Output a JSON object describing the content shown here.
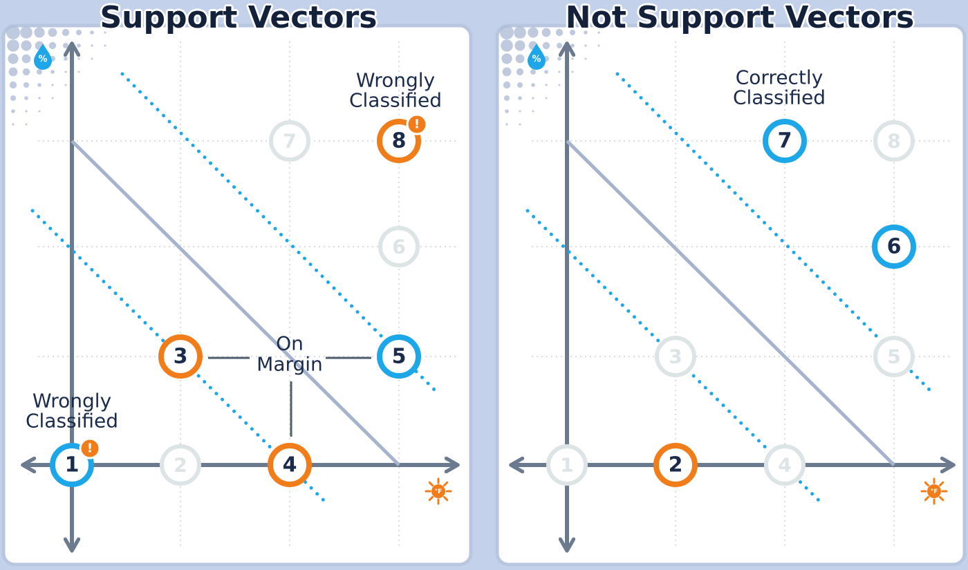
{
  "panels": [
    {
      "title": "Support Vectors",
      "labels": {
        "wrong_top": [
          "Wrongly",
          "Classified"
        ],
        "wrong_bottom": [
          "Wrongly",
          "Classified"
        ],
        "on_margin": [
          "On",
          "Margin"
        ]
      },
      "points": [
        {
          "id": "1",
          "state": "blue",
          "alert": true
        },
        {
          "id": "2",
          "state": "faded"
        },
        {
          "id": "3",
          "state": "orange"
        },
        {
          "id": "4",
          "state": "orange"
        },
        {
          "id": "5",
          "state": "blue"
        },
        {
          "id": "6",
          "state": "faded"
        },
        {
          "id": "7",
          "state": "faded"
        },
        {
          "id": "8",
          "state": "orange",
          "alert": true
        }
      ]
    },
    {
      "title": "Not Support Vectors",
      "labels": {
        "correct_top": [
          "Correctly",
          "Classified"
        ]
      },
      "points": [
        {
          "id": "1",
          "state": "faded"
        },
        {
          "id": "2",
          "state": "orange"
        },
        {
          "id": "3",
          "state": "faded"
        },
        {
          "id": "4",
          "state": "faded"
        },
        {
          "id": "5",
          "state": "faded"
        },
        {
          "id": "6",
          "state": "blue"
        },
        {
          "id": "7",
          "state": "blue"
        },
        {
          "id": "8",
          "state": "faded"
        }
      ]
    }
  ],
  "icons": {
    "y_axis": "humidity-percent-drop-icon",
    "x_axis": "temperature-sun-icon",
    "alert": "exclamation-icon"
  },
  "colors": {
    "blue": "#1ea7e8",
    "orange": "#f07d1a",
    "faded": "#dde4e6",
    "axis": "#6b7a8f",
    "boundary": "#a5b3cd",
    "margin": "#1ea7e8",
    "navy": "#1a2b4c"
  }
}
